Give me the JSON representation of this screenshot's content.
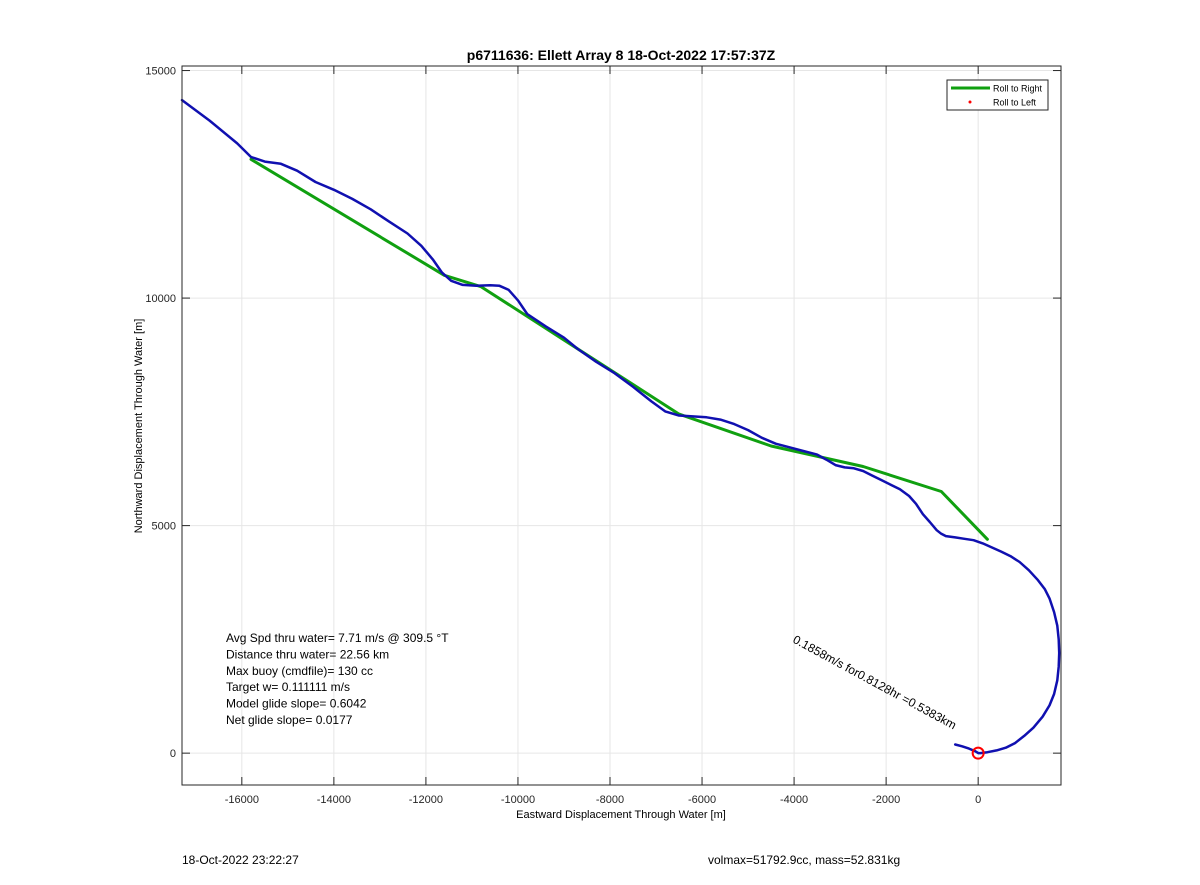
{
  "chart_data": {
    "type": "line",
    "title": "p6711636: Ellett Array 8 18-Oct-2022 17:57:37Z",
    "xlabel": "Eastward Displacement Through Water [m]",
    "ylabel": "Northward Displacement Through Water [m]",
    "xlim": [
      -17300,
      1800
    ],
    "ylim": [
      -700,
      15100
    ],
    "xticks": [
      -16000,
      -14000,
      -12000,
      -10000,
      -8000,
      -6000,
      -4000,
      -2000,
      0
    ],
    "xtick_labels": [
      "-16000",
      "-14000",
      "-12000",
      "-10000",
      "-8000",
      "-6000",
      "-4000",
      "-2000",
      "0"
    ],
    "yticks": [
      0,
      5000,
      10000,
      15000
    ],
    "ytick_labels": [
      "0",
      "5000",
      "10000",
      "15000"
    ],
    "grid": true,
    "legend_position": "top-right",
    "series": [
      {
        "name": "Roll to Right",
        "color": "#10a010",
        "style": "line",
        "x": [
          -15800,
          -11600,
          -10800,
          -6500,
          -4500,
          -2500,
          -800,
          200
        ],
        "y": [
          13050,
          10500,
          10250,
          7450,
          6750,
          6300,
          5750,
          4700
        ]
      },
      {
        "name": "Roll to Left",
        "color": "#ff0000",
        "style": "dots",
        "x": [],
        "y": []
      },
      {
        "color": "#1010b0",
        "style": "line",
        "x": [
          -17300,
          -16700,
          -16100,
          -15800,
          -15500,
          -15150,
          -14800,
          -14400,
          -14000,
          -13600,
          -13200,
          -12800,
          -12400,
          -12100,
          -11850,
          -11650,
          -11450,
          -11200,
          -10900,
          -10600,
          -10400,
          -10200,
          -10000,
          -9800,
          -9400,
          -9000,
          -8700,
          -8300,
          -7900,
          -7500,
          -7100,
          -6800,
          -6500,
          -6200,
          -5900,
          -5600,
          -5300,
          -5000,
          -4700,
          -4400,
          -4100,
          -3800,
          -3500,
          -3300,
          -3100,
          -2900,
          -2700,
          -2500,
          -2300,
          -2100,
          -1900,
          -1700,
          -1500,
          -1350,
          -1200,
          -1050,
          -900,
          -800,
          -700,
          -500,
          -300,
          -100,
          100,
          300,
          500,
          700,
          900,
          1100,
          1300,
          1450,
          1550,
          1650,
          1720,
          1750,
          1760,
          1750,
          1720,
          1650,
          1550,
          1400,
          1200,
          1000,
          800,
          600,
          400,
          200,
          50,
          0,
          -60,
          -200,
          -350,
          -500
        ],
        "y": [
          14350,
          13900,
          13400,
          13100,
          13000,
          12950,
          12800,
          12550,
          12380,
          12180,
          11950,
          11680,
          11420,
          11150,
          10850,
          10560,
          10380,
          10290,
          10270,
          10280,
          10270,
          10180,
          9950,
          9650,
          9380,
          9130,
          8880,
          8600,
          8350,
          8050,
          7730,
          7510,
          7420,
          7400,
          7380,
          7330,
          7230,
          7100,
          6930,
          6800,
          6720,
          6640,
          6560,
          6450,
          6330,
          6280,
          6260,
          6200,
          6100,
          6000,
          5900,
          5800,
          5650,
          5480,
          5250,
          5080,
          4900,
          4820,
          4770,
          4740,
          4710,
          4680,
          4610,
          4520,
          4430,
          4330,
          4200,
          4020,
          3800,
          3600,
          3400,
          3100,
          2800,
          2500,
          2200,
          1900,
          1600,
          1300,
          1050,
          800,
          560,
          380,
          220,
          120,
          60,
          20,
          0,
          0,
          40,
          100,
          150,
          190
        ]
      }
    ],
    "marker": {
      "x": 0,
      "y": 0,
      "color": "#ff0000"
    },
    "annotations": [
      "Avg Spd thru water=  7.71 m/s @ 309.5 °T",
      "Distance thru water= 22.56 km",
      "Max buoy (cmdfile)= 130 cc",
      "Target w= 0.111111 m/s",
      "Model glide slope= 0.6042",
      "Net glide slope= 0.0177"
    ],
    "current_label": "0.1858m/s for0.8128hr =0.5383km"
  },
  "footer": {
    "left": "18-Oct-2022 23:22:27",
    "right": "volmax=51792.9cc, mass=52.831kg"
  }
}
